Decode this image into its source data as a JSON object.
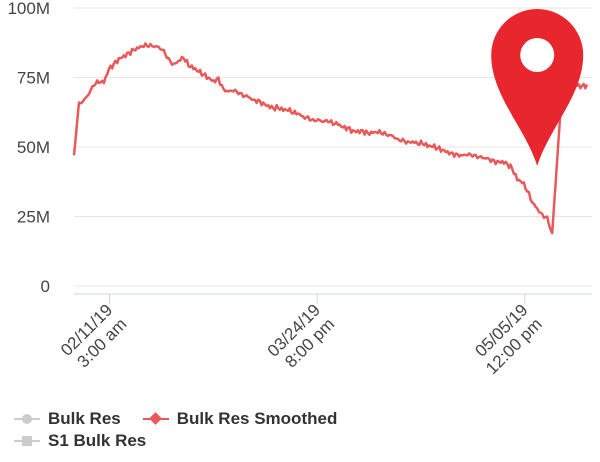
{
  "chart_data": {
    "type": "line",
    "title": "",
    "xlabel": "",
    "ylabel": "",
    "ylim": [
      0,
      100000000
    ],
    "y_ticks": [
      {
        "value": 0,
        "label": "0"
      },
      {
        "value": 25000000,
        "label": "25M"
      },
      {
        "value": 50000000,
        "label": "50M"
      },
      {
        "value": 75000000,
        "label": "75M"
      },
      {
        "value": 100000000,
        "label": "100M"
      }
    ],
    "x_ticks": [
      {
        "value": "2019-02-11 03:00",
        "lines": [
          "02/11/19",
          "3:00 am"
        ]
      },
      {
        "value": "2019-03-24 20:00",
        "lines": [
          "03/24/19",
          "8:00 pm"
        ]
      },
      {
        "value": "2019-05-05 12:00",
        "lines": [
          "05/05/19",
          "12:00 pm"
        ]
      }
    ],
    "x_range": [
      "2019-02-04",
      "2019-05-19"
    ],
    "grid": true,
    "legend_position": "bottom-left",
    "series": [
      {
        "name": "Bulk Res",
        "color": "#cccccc",
        "marker": "circle",
        "values": []
      },
      {
        "name": "Bulk Res Smoothed",
        "color": "#e85a5a",
        "marker": "diamond",
        "x": [
          "2019-02-04",
          "2019-02-05",
          "2019-02-06",
          "2019-02-07",
          "2019-02-08",
          "2019-02-09",
          "2019-02-10",
          "2019-02-11",
          "2019-02-12",
          "2019-02-13",
          "2019-02-14",
          "2019-02-15",
          "2019-02-16",
          "2019-02-17",
          "2019-02-18",
          "2019-02-19",
          "2019-02-20",
          "2019-02-21",
          "2019-02-22",
          "2019-02-23",
          "2019-02-24",
          "2019-02-25",
          "2019-02-26",
          "2019-02-27",
          "2019-02-28",
          "2019-03-01",
          "2019-03-02",
          "2019-03-03",
          "2019-03-04",
          "2019-03-05",
          "2019-03-06",
          "2019-03-07",
          "2019-03-08",
          "2019-03-09",
          "2019-03-10",
          "2019-03-11",
          "2019-03-12",
          "2019-03-13",
          "2019-03-14",
          "2019-03-15",
          "2019-03-16",
          "2019-03-17",
          "2019-03-18",
          "2019-03-19",
          "2019-03-20",
          "2019-03-21",
          "2019-03-22",
          "2019-03-23",
          "2019-03-24",
          "2019-03-25",
          "2019-03-26",
          "2019-03-27",
          "2019-03-28",
          "2019-03-29",
          "2019-03-30",
          "2019-03-31",
          "2019-04-01",
          "2019-04-02",
          "2019-04-03",
          "2019-04-04",
          "2019-04-05",
          "2019-04-06",
          "2019-04-07",
          "2019-04-08",
          "2019-04-09",
          "2019-04-10",
          "2019-04-11",
          "2019-04-12",
          "2019-04-13",
          "2019-04-14",
          "2019-04-15",
          "2019-04-16",
          "2019-04-17",
          "2019-04-18",
          "2019-04-19",
          "2019-04-20",
          "2019-04-21",
          "2019-04-22",
          "2019-04-23",
          "2019-04-24",
          "2019-04-25",
          "2019-04-26",
          "2019-04-27",
          "2019-04-28",
          "2019-04-29",
          "2019-04-30",
          "2019-05-01",
          "2019-05-02",
          "2019-05-03",
          "2019-05-04",
          "2019-05-05",
          "2019-05-06",
          "2019-05-07",
          "2019-05-08",
          "2019-05-09",
          "2019-05-10",
          "2019-05-11",
          "2019-05-12",
          "2019-05-13",
          "2019-05-14",
          "2019-05-15",
          "2019-05-16",
          "2019-05-17",
          "2019-05-18"
        ],
        "values": [
          47000000,
          66000000,
          67000000,
          69000000,
          72000000,
          73000000,
          73000000,
          78000000,
          80000000,
          82000000,
          83000000,
          84000000,
          85000000,
          85500000,
          86000000,
          86000000,
          86000000,
          86000000,
          85000000,
          82000000,
          80000000,
          81000000,
          82000000,
          79000000,
          78000000,
          77000000,
          76000000,
          75000000,
          74000000,
          75000000,
          71000000,
          70000000,
          70000000,
          69000000,
          68000000,
          68000000,
          67000000,
          67000000,
          66000000,
          65000000,
          64000000,
          64000000,
          63000000,
          63000000,
          62000000,
          62000000,
          61000000,
          61000000,
          60000000,
          60000000,
          59000000,
          59000000,
          58000000,
          58000000,
          57000000,
          57000000,
          56000000,
          56000000,
          56000000,
          55000000,
          55000000,
          55000000,
          54500000,
          54000000,
          54000000,
          53000000,
          53000000,
          52000000,
          52000000,
          51000000,
          51000000,
          50000000,
          50000000,
          49500000,
          49000000,
          48500000,
          48000000,
          47500000,
          47000000,
          47000000,
          46500000,
          46000000,
          46000000,
          46000000,
          45500000,
          45000000,
          45000000,
          44000000,
          42000000,
          38000000,
          37000000,
          34000000,
          30000000,
          28000000,
          26000000,
          25000000,
          19000000,
          45000000,
          72000000,
          72000000,
          72000000,
          72000000,
          72000000,
          72500000
        ]
      },
      {
        "name": "S1 Bulk Res",
        "color": "#cccccc",
        "marker": "square",
        "values": []
      }
    ],
    "annotations": [
      {
        "type": "map-pin-icon",
        "color": "#e8262d",
        "at_x": "2019-05-08"
      }
    ]
  }
}
